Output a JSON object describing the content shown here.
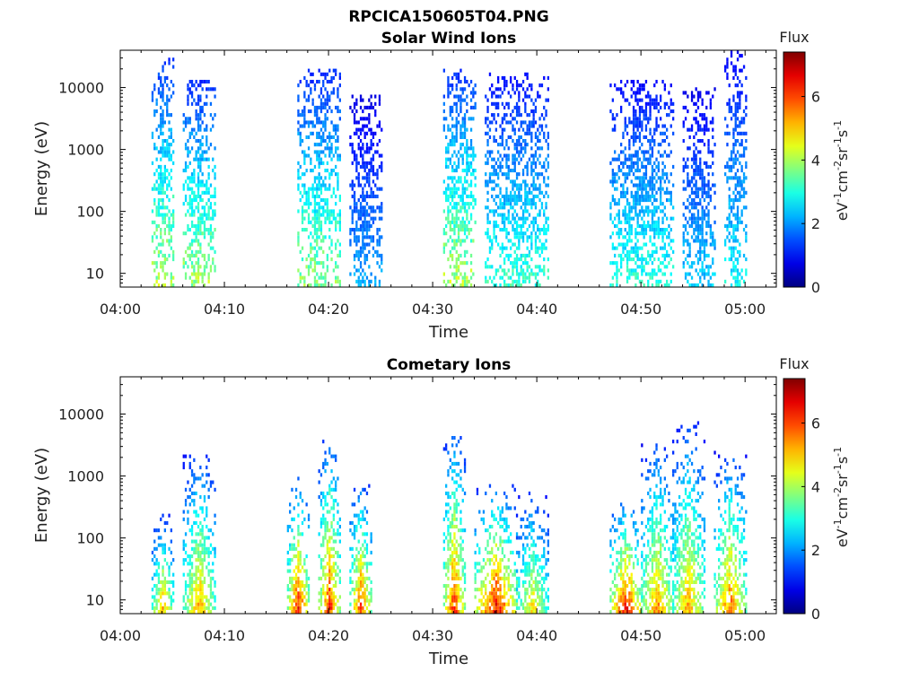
{
  "figure_title": "RPCICA150605T04.PNG",
  "chart_data": [
    {
      "type": "heatmap",
      "title": "Solar Wind Ions",
      "xlabel": "Time",
      "ylabel": "Energy (eV)",
      "y_scale": "log",
      "ylim": [
        6,
        40000
      ],
      "xlim": [
        "04:00",
        "05:03"
      ],
      "x_ticks": [
        "04:00",
        "04:10",
        "04:20",
        "04:30",
        "04:40",
        "04:50",
        "05:00"
      ],
      "y_ticks": [
        "10",
        "100",
        "1000",
        "10000"
      ],
      "colorbar": {
        "title": "Flux",
        "label": "eV-1cm-2sr-1s-1",
        "range": [
          0,
          7.4
        ],
        "ticks": [
          "0",
          "2",
          "4",
          "6"
        ],
        "colormap": "jet"
      },
      "bursts": [
        {
          "start": "04:03",
          "end": "04:05",
          "emax": 30000,
          "fmax": 4.6
        },
        {
          "start": "04:06",
          "end": "04:09",
          "emax": 13000,
          "fmax": 4.5
        },
        {
          "start": "04:17",
          "end": "04:21",
          "emax": 20000,
          "fmax": 4.3
        },
        {
          "start": "04:22",
          "end": "04:25",
          "emax": 7000,
          "fmax": 2.5
        },
        {
          "start": "04:31",
          "end": "04:34",
          "emax": 18000,
          "fmax": 4.6
        },
        {
          "start": "04:35",
          "end": "04:41",
          "emax": 17000,
          "fmax": 3.6
        },
        {
          "start": "04:47",
          "end": "04:53",
          "emax": 12000,
          "fmax": 3.5
        },
        {
          "start": "04:54",
          "end": "04:57",
          "emax": 10000,
          "fmax": 2.8
        },
        {
          "start": "04:58",
          "end": "05:00",
          "emax": 38000,
          "fmax": 3.2
        }
      ]
    },
    {
      "type": "heatmap",
      "title": "Cometary Ions",
      "xlabel": "Time",
      "ylabel": "Energy (eV)",
      "y_scale": "log",
      "ylim": [
        6,
        40000
      ],
      "xlim": [
        "04:00",
        "05:03"
      ],
      "x_ticks": [
        "04:00",
        "04:10",
        "04:20",
        "04:30",
        "04:40",
        "04:50",
        "05:00"
      ],
      "y_ticks": [
        "10",
        "100",
        "1000",
        "10000"
      ],
      "colorbar": {
        "title": "Flux",
        "label": "eV-1cm-2sr-1s-1",
        "range": [
          0,
          7.4
        ],
        "ticks": [
          "0",
          "2",
          "4",
          "6"
        ],
        "colormap": "jet"
      },
      "bursts": [
        {
          "start": "04:03",
          "end": "04:05",
          "emax": 220,
          "fmax": 6.0
        },
        {
          "start": "04:06",
          "end": "04:09",
          "emax": 2500,
          "fmax": 6.0
        },
        {
          "start": "04:16",
          "end": "04:18",
          "emax": 900,
          "fmax": 7.2
        },
        {
          "start": "04:19",
          "end": "04:21",
          "emax": 3800,
          "fmax": 7.0
        },
        {
          "start": "04:22",
          "end": "04:24",
          "emax": 700,
          "fmax": 6.8
        },
        {
          "start": "04:31",
          "end": "04:33",
          "emax": 5000,
          "fmax": 7.0
        },
        {
          "start": "04:34",
          "end": "04:38",
          "emax": 650,
          "fmax": 7.3
        },
        {
          "start": "04:38",
          "end": "04:41",
          "emax": 550,
          "fmax": 5.5
        },
        {
          "start": "04:47",
          "end": "04:50",
          "emax": 400,
          "fmax": 7.3
        },
        {
          "start": "04:50",
          "end": "04:53",
          "emax": 3300,
          "fmax": 6.2
        },
        {
          "start": "04:53",
          "end": "04:56",
          "emax": 7500,
          "fmax": 6.0
        },
        {
          "start": "04:57",
          "end": "05:00",
          "emax": 2300,
          "fmax": 6.5
        }
      ]
    }
  ]
}
